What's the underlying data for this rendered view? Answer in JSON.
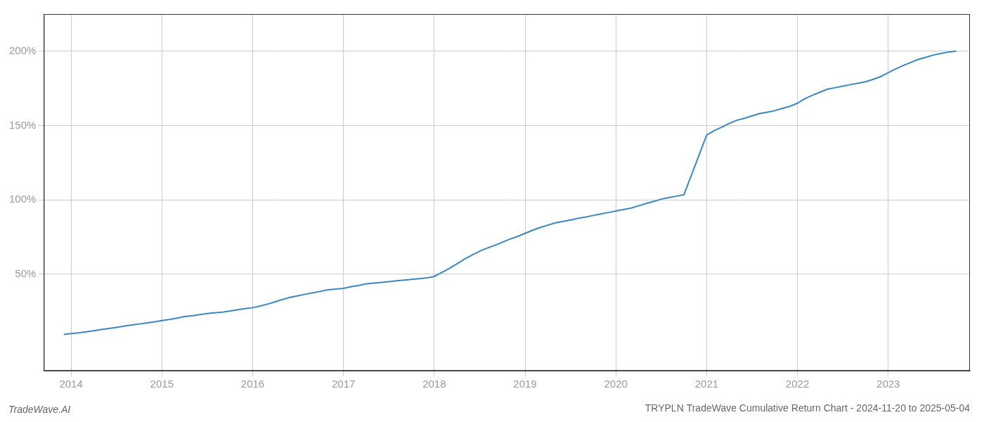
{
  "chart_data": {
    "type": "line",
    "title": "TRYPLN TradeWave Cumulative Return Chart - 2024-11-20 to 2025-05-04",
    "annotations": [
      "TradeWave.AI"
    ],
    "x": [
      2013.92,
      2014.0,
      2014.08,
      2014.17,
      2014.25,
      2014.33,
      2014.42,
      2014.5,
      2014.58,
      2014.67,
      2014.75,
      2014.83,
      2014.92,
      2015.0,
      2015.08,
      2015.17,
      2015.25,
      2015.33,
      2015.42,
      2015.5,
      2015.58,
      2015.67,
      2015.75,
      2015.83,
      2015.92,
      2016.0,
      2016.08,
      2016.17,
      2016.25,
      2016.33,
      2016.42,
      2016.5,
      2016.58,
      2016.67,
      2016.75,
      2016.83,
      2016.92,
      2017.0,
      2017.08,
      2017.17,
      2017.25,
      2017.33,
      2017.42,
      2017.5,
      2017.58,
      2017.67,
      2017.75,
      2017.83,
      2017.92,
      2018.0,
      2018.08,
      2018.17,
      2018.25,
      2018.33,
      2018.42,
      2018.5,
      2018.58,
      2018.67,
      2018.75,
      2018.83,
      2018.92,
      2019.0,
      2019.08,
      2019.17,
      2019.25,
      2019.33,
      2019.42,
      2019.5,
      2019.58,
      2019.67,
      2019.75,
      2019.83,
      2019.92,
      2020.0,
      2020.08,
      2020.17,
      2020.25,
      2020.33,
      2020.42,
      2020.5,
      2020.58,
      2020.67,
      2020.75,
      2021.0,
      2021.08,
      2021.17,
      2021.25,
      2021.33,
      2021.42,
      2021.5,
      2021.58,
      2021.67,
      2021.75,
      2021.83,
      2021.92,
      2022.0,
      2022.08,
      2022.17,
      2022.25,
      2022.33,
      2022.42,
      2022.5,
      2022.58,
      2022.67,
      2022.75,
      2022.83,
      2022.92,
      2023.0,
      2023.08,
      2023.17,
      2023.25,
      2023.33,
      2023.42,
      2023.5,
      2023.58,
      2023.67,
      2023.75
    ],
    "values": [
      9.5,
      10.0,
      10.5,
      11.2,
      12.0,
      12.8,
      13.5,
      14.2,
      15.0,
      15.8,
      16.5,
      17.2,
      18.0,
      18.8,
      19.5,
      20.5,
      21.5,
      22.0,
      22.8,
      23.5,
      24.0,
      24.5,
      25.2,
      26.0,
      26.8,
      27.5,
      28.5,
      30.0,
      31.5,
      33.0,
      34.5,
      35.5,
      36.5,
      37.5,
      38.5,
      39.5,
      40.0,
      40.5,
      41.5,
      42.5,
      43.5,
      44.0,
      44.5,
      45.0,
      45.5,
      46.0,
      46.5,
      47.0,
      47.5,
      48.5,
      51.0,
      54.0,
      57.0,
      60.0,
      63.0,
      65.5,
      67.5,
      69.5,
      71.5,
      73.5,
      75.5,
      77.5,
      79.5,
      81.5,
      83.0,
      84.5,
      85.5,
      86.5,
      87.5,
      88.5,
      89.5,
      90.5,
      91.5,
      92.5,
      93.5,
      94.5,
      96.0,
      97.5,
      99.0,
      100.5,
      101.5,
      102.5,
      103.5,
      143.5,
      146.5,
      149.0,
      151.5,
      153.5,
      155.0,
      156.5,
      158.0,
      159.0,
      160.0,
      161.5,
      163.0,
      165.0,
      168.0,
      170.5,
      172.5,
      174.5,
      175.5,
      176.5,
      177.5,
      178.5,
      179.5,
      181.0,
      183.0,
      185.5,
      188.0,
      190.5,
      192.5,
      194.5,
      196.0,
      197.5,
      198.5,
      199.5,
      200.0
    ],
    "color": "#3a87c8",
    "xlim": [
      2013.7,
      2023.9
    ],
    "xticks": [
      2014,
      2015,
      2016,
      2017,
      2018,
      2019,
      2020,
      2021,
      2022,
      2023
    ],
    "ylim": [
      -15,
      225
    ],
    "yticks": [
      {
        "value": 50,
        "label": "50%"
      },
      {
        "value": 100,
        "label": "100%"
      },
      {
        "value": 150,
        "label": "150%"
      },
      {
        "value": 200,
        "label": "200%"
      }
    ],
    "grid": true
  }
}
